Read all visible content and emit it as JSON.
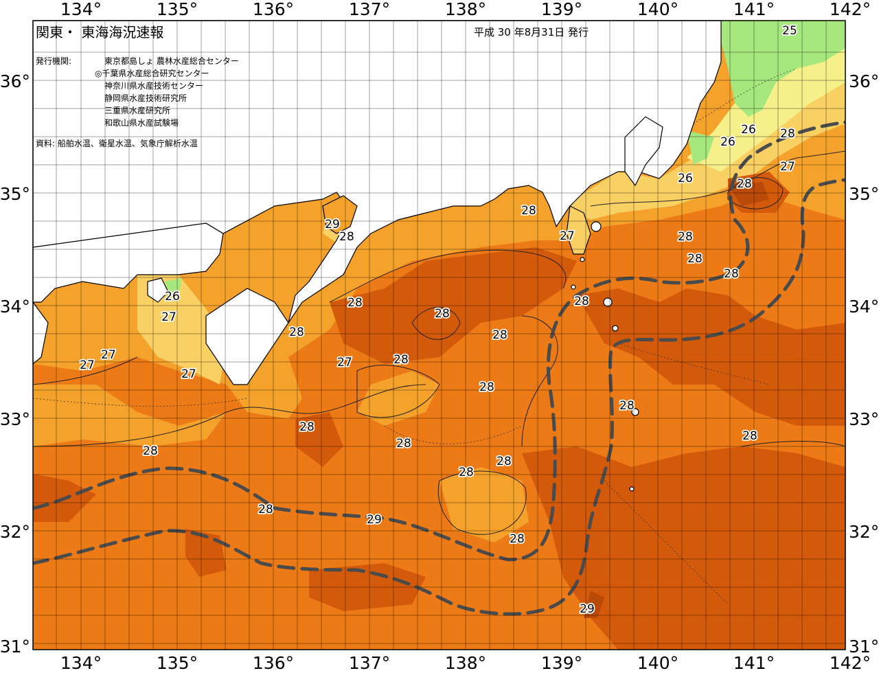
{
  "header": {
    "title": "関東・ 東海海況速報",
    "date": "平成  30 年8月31日  発行"
  },
  "publisher": {
    "label": "発行機関:",
    "lines": [
      "東京都島しょ 農林水産総合センター",
      "◎千葉県水産総合研究センター",
      "神奈川県水産技術センター",
      "静岡県水産技術研究所",
      "三重県水産研究所",
      "和歌山県水産試験場"
    ]
  },
  "source": "資料: 船舶水温、衛星水温、気象庁解析水温",
  "axes": {
    "lon_top": [
      "134°",
      "135°",
      "136°",
      "137°",
      "138°",
      "139°",
      "140°",
      "141°",
      "142°"
    ],
    "lon_bottom": [
      "134°",
      "135°",
      "136°",
      "137°",
      "138°",
      "139°",
      "140°",
      "141°",
      "142°"
    ],
    "lat_left": [
      "36°",
      "35°",
      "34°",
      "33°",
      "32°",
      "31°"
    ],
    "lat_right": [
      "36°",
      "35°",
      "34°",
      "33°",
      "32°",
      "31°"
    ]
  },
  "contour_labels": [
    {
      "text": "25"
    },
    {
      "text": "26"
    },
    {
      "text": "26"
    },
    {
      "text": "28"
    },
    {
      "text": "27"
    },
    {
      "text": "26"
    },
    {
      "text": "28"
    },
    {
      "text": "28"
    },
    {
      "text": "27"
    },
    {
      "text": "28"
    },
    {
      "text": "28"
    },
    {
      "text": "28"
    },
    {
      "text": "29"
    },
    {
      "text": "28"
    },
    {
      "text": "28"
    },
    {
      "text": "28"
    },
    {
      "text": "28"
    },
    {
      "text": "28"
    },
    {
      "text": "27"
    },
    {
      "text": "28"
    },
    {
      "text": "26"
    },
    {
      "text": "27"
    },
    {
      "text": "27"
    },
    {
      "text": "27"
    },
    {
      "text": "27"
    },
    {
      "text": "28"
    },
    {
      "text": "28"
    },
    {
      "text": "28"
    },
    {
      "text": "28"
    },
    {
      "text": "28"
    },
    {
      "text": "28"
    },
    {
      "text": "28"
    },
    {
      "text": "28"
    },
    {
      "text": "28"
    },
    {
      "text": "28"
    },
    {
      "text": "29"
    }
  ],
  "colors": {
    "sea_28": "#ec7a16",
    "sea_28_5": "#d35a0a",
    "sea_27": "#f4a22c",
    "sea_26": "#f8d063",
    "sea_25": "#f6f08a",
    "sea_24": "#a6e87e",
    "land": "#ffffff",
    "kuroshio": "#4b4b4b"
  }
}
